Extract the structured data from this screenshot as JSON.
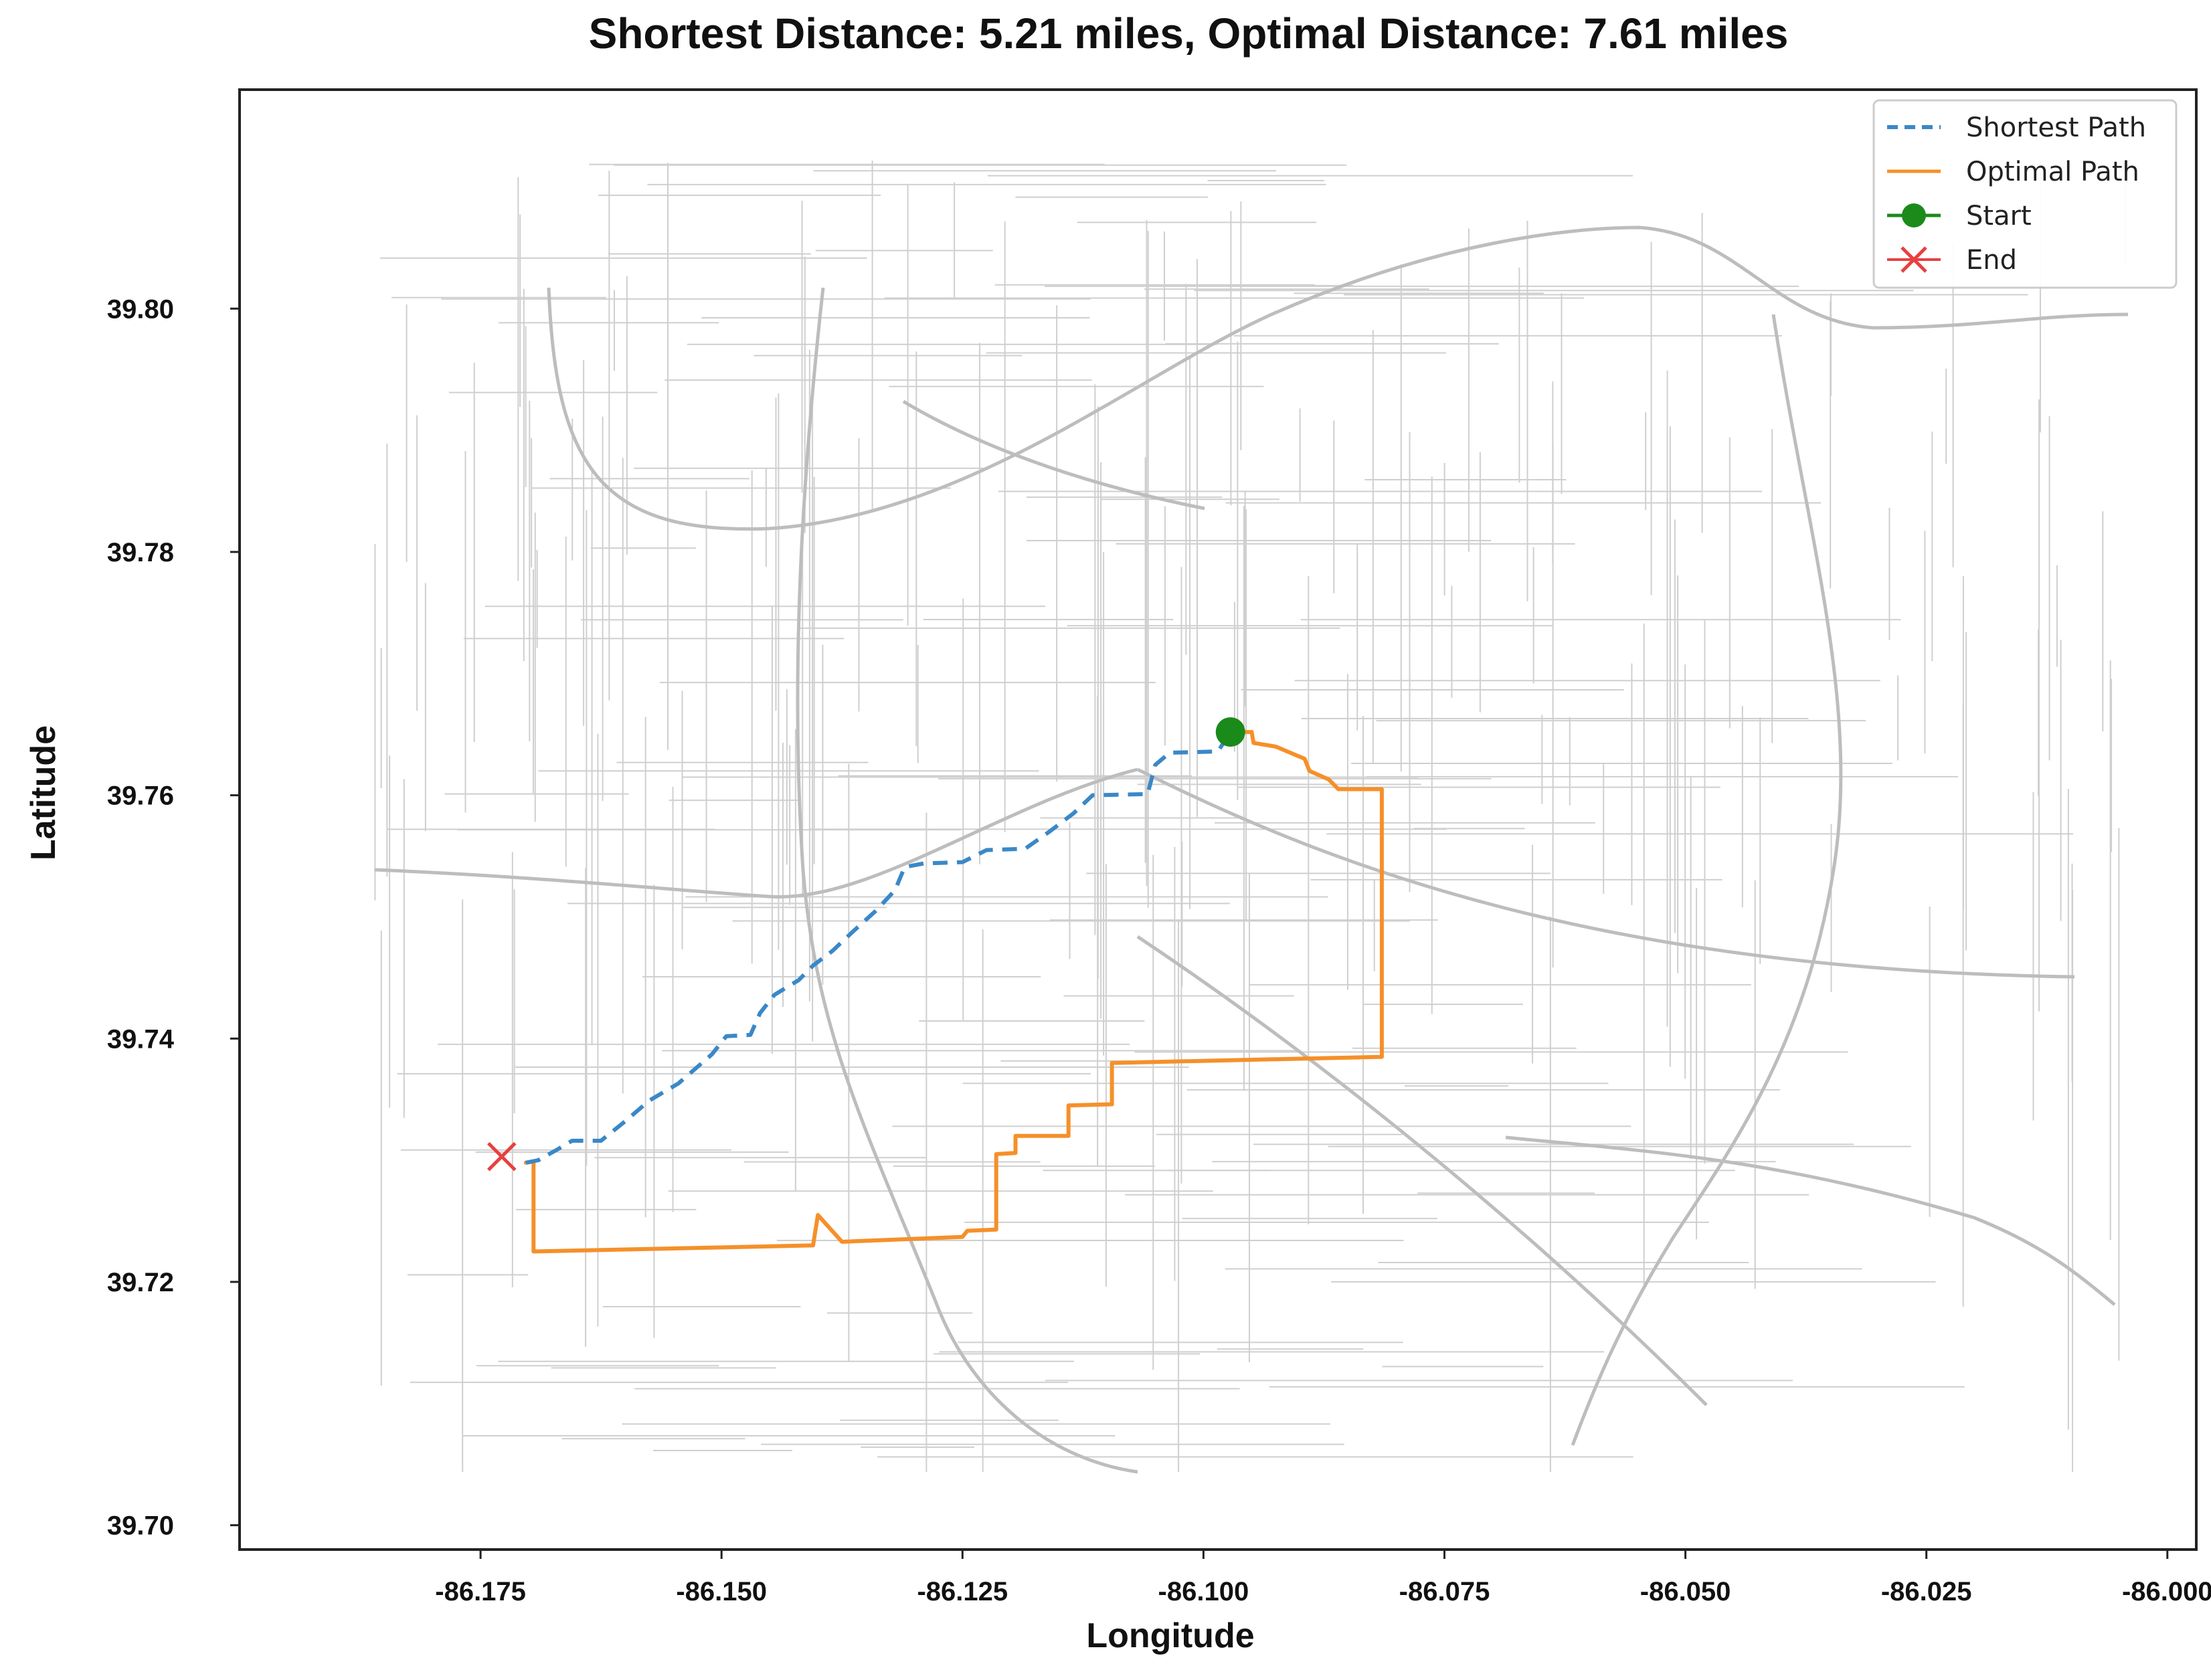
{
  "chart_data": {
    "type": "line",
    "title": "Shortest Distance: 5.21 miles, Optimal Distance: 7.61 miles",
    "xlabel": "Longitude",
    "ylabel": "Latitude",
    "xlim": [
      -86.2,
      -85.997
    ],
    "ylim": [
      39.698,
      39.818
    ],
    "x_ticks": [
      -86.175,
      -86.15,
      -86.125,
      -86.1,
      -86.075,
      -86.05,
      -86.025,
      -86.0
    ],
    "x_tick_labels": [
      "-86.175",
      "-86.150",
      "-86.125",
      "-86.100",
      "-86.075",
      "-86.050",
      "-86.025",
      "-86.000"
    ],
    "y_ticks": [
      39.7,
      39.72,
      39.74,
      39.76,
      39.78,
      39.8
    ],
    "y_tick_labels": [
      "39.70",
      "39.72",
      "39.74",
      "39.76",
      "39.78",
      "39.80"
    ],
    "grid": false,
    "legend_position": "top-right",
    "series": [
      {
        "name": "Shortest Path",
        "style": "dashed",
        "color": "#3a88c8",
        "points": [
          [
            -86.1703,
            39.7298
          ],
          [
            -86.169,
            39.73
          ],
          [
            -86.167,
            39.7309
          ],
          [
            -86.1655,
            39.7316
          ],
          [
            -86.1625,
            39.7316
          ],
          [
            -86.16,
            39.7332
          ],
          [
            -86.1575,
            39.7349
          ],
          [
            -86.1545,
            39.7363
          ],
          [
            -86.151,
            39.7387
          ],
          [
            -86.1495,
            39.7402
          ],
          [
            -86.147,
            39.7403
          ],
          [
            -86.146,
            39.7421
          ],
          [
            -86.1445,
            39.7436
          ],
          [
            -86.142,
            39.7448
          ],
          [
            -86.1405,
            39.746
          ],
          [
            -86.1385,
            39.7472
          ],
          [
            -86.1365,
            39.7487
          ],
          [
            -86.134,
            39.7505
          ],
          [
            -86.132,
            39.7522
          ],
          [
            -86.131,
            39.7541
          ],
          [
            -86.129,
            39.7544
          ],
          [
            -86.125,
            39.7545
          ],
          [
            -86.1225,
            39.7555
          ],
          [
            -86.1185,
            39.7556
          ],
          [
            -86.116,
            39.757
          ],
          [
            -86.1135,
            39.7585
          ],
          [
            -86.1115,
            39.76
          ],
          [
            -86.1058,
            39.7601
          ],
          [
            -86.105,
            39.7625
          ],
          [
            -86.1035,
            39.7635
          ],
          [
            -86.0985,
            39.7636
          ],
          [
            -86.0972,
            39.7652
          ]
        ]
      },
      {
        "name": "Optimal Path",
        "style": "solid",
        "color": "#f5902a",
        "points": [
          [
            -86.1703,
            39.7298
          ],
          [
            -86.1695,
            39.7299
          ],
          [
            -86.1695,
            39.7225
          ],
          [
            -86.1405,
            39.723
          ],
          [
            -86.14,
            39.7255
          ],
          [
            -86.1375,
            39.7233
          ],
          [
            -86.125,
            39.7237
          ],
          [
            -86.1245,
            39.7242
          ],
          [
            -86.1215,
            39.7243
          ],
          [
            -86.1215,
            39.7305
          ],
          [
            -86.1195,
            39.7306
          ],
          [
            -86.1195,
            39.732
          ],
          [
            -86.114,
            39.732
          ],
          [
            -86.114,
            39.7345
          ],
          [
            -86.1095,
            39.7346
          ],
          [
            -86.1095,
            39.738
          ],
          [
            -86.0815,
            39.7385
          ],
          [
            -86.0815,
            39.7605
          ],
          [
            -86.086,
            39.7605
          ],
          [
            -86.087,
            39.7613
          ],
          [
            -86.089,
            39.762
          ],
          [
            -86.0895,
            39.763
          ],
          [
            -86.0925,
            39.764
          ],
          [
            -86.0948,
            39.7643
          ],
          [
            -86.095,
            39.7652
          ],
          [
            -86.0972,
            39.7652
          ]
        ]
      }
    ],
    "markers": [
      {
        "name": "Start",
        "x": -86.0972,
        "y": 39.7652,
        "symbol": "circle",
        "color": "#1a8a1a"
      },
      {
        "name": "End",
        "x": -86.1728,
        "y": 39.7303,
        "symbol": "x",
        "color": "#e84040"
      }
    ],
    "legend": [
      {
        "label": "Shortest Path",
        "symbol": "dashed-line",
        "color": "#3a88c8"
      },
      {
        "label": "Optimal Path",
        "symbol": "solid-line",
        "color": "#f5902a"
      },
      {
        "label": "Start",
        "symbol": "circle",
        "color": "#1a8a1a"
      },
      {
        "label": "End",
        "symbol": "x",
        "color": "#e84040"
      }
    ],
    "background": "street-network-map"
  }
}
